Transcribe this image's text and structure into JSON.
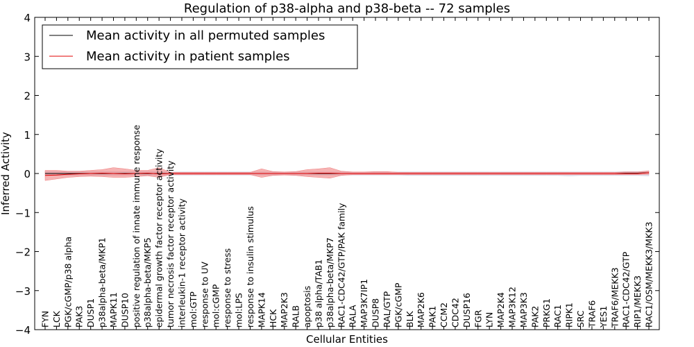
{
  "chart_data": {
    "type": "line",
    "title": "Regulation of p38-alpha and p38-beta -- 72 samples",
    "xlabel": "Cellular Entities",
    "ylabel": "Inferred Activity",
    "ylim": [
      -4,
      4
    ],
    "yticks": [
      4,
      3,
      2,
      1,
      0,
      -1,
      -2,
      -3,
      -4
    ],
    "ytick_labels": [
      "4",
      "3",
      "2",
      "1",
      "0",
      "−1",
      "−2",
      "−3",
      "−4"
    ],
    "legend_location": "top-left",
    "categories": [
      "FYN",
      "LCK",
      "PGK/cGMP/p38 alpha",
      "PAK3",
      "DUSP1",
      "p38alpha-beta/MKP1",
      "MAPK11",
      "DUSP10",
      "positive regulation of innate immune response",
      "p38alpha-beta/MKP5",
      "epidermal growth factor receptor activity",
      "tumor necrosis factor receptor activity",
      "interleukin-1 receptor activity",
      "mol:GTP",
      "response to UV",
      "mol:cGMP",
      "response to stress",
      "mol:LPS",
      "response to insulin stimulus",
      "MAPK14",
      "HCK",
      "MAP2K3",
      "RALB",
      "apoptosis",
      "p38 alpha/TAB1",
      "p38alpha-beta/MKP7",
      "RAC1-CDC42/GTP/PAK family",
      "RALA",
      "MAP3K7IP1",
      "DUSP8",
      "RAL/GTP",
      "PGK/cGMP",
      "BLK",
      "MAP2K6",
      "PAK1",
      "CCM2",
      "CDC42",
      "DUSP16",
      "FGR",
      "LYN",
      "MAP2K4",
      "MAP3K12",
      "MAP3K3",
      "PAK2",
      "PRKG1",
      "RAC1",
      "RIPK1",
      "SRC",
      "TRAF6",
      "YES1",
      "TRAF6/MEKK3",
      "RAC1-CDC42/GTP",
      "RIP1/MEKK3",
      "RAC1/OSM/MEKK3/MKK3"
    ],
    "series": [
      {
        "name": "Mean activity in all permuted samples",
        "color": "#000000",
        "values": [
          0,
          0,
          0,
          0,
          0,
          0,
          0,
          0,
          0,
          0,
          0,
          0,
          0,
          0,
          0,
          0,
          0,
          0,
          0,
          0,
          0,
          0,
          0,
          0,
          0,
          0,
          0,
          0,
          0,
          0,
          0,
          0,
          0,
          0,
          0,
          0,
          0,
          0,
          0,
          0,
          0,
          0,
          0,
          0,
          0,
          0,
          0,
          0,
          0,
          0,
          0,
          0.01,
          0.01,
          0.02
        ],
        "band_upper": [
          0.05,
          0.05,
          0.05,
          0.05,
          0.05,
          0.05,
          0.05,
          0.05,
          0.05,
          0.05,
          0.05,
          0.04,
          0.04,
          0.04,
          0.04,
          0.04,
          0.04,
          0.04,
          0.04,
          0.04,
          0.04,
          0.04,
          0.04,
          0.04,
          0.04,
          0.04,
          0.04,
          0.04,
          0.04,
          0.04,
          0.04,
          0.04,
          0.04,
          0.04,
          0.04,
          0.04,
          0.04,
          0.04,
          0.04,
          0.04,
          0.04,
          0.04,
          0.04,
          0.04,
          0.04,
          0.04,
          0.04,
          0.04,
          0.04,
          0.04,
          0.04,
          0.05,
          0.05,
          0.06
        ],
        "band_lower": [
          -0.05,
          -0.05,
          -0.05,
          -0.05,
          -0.05,
          -0.05,
          -0.05,
          -0.05,
          -0.05,
          -0.05,
          -0.05,
          -0.04,
          -0.04,
          -0.04,
          -0.04,
          -0.04,
          -0.04,
          -0.04,
          -0.04,
          -0.04,
          -0.04,
          -0.04,
          -0.04,
          -0.04,
          -0.04,
          -0.04,
          -0.04,
          -0.04,
          -0.04,
          -0.04,
          -0.04,
          -0.04,
          -0.05,
          -0.05,
          -0.05,
          -0.05,
          -0.05,
          -0.05,
          -0.05,
          -0.05,
          -0.05,
          -0.05,
          -0.05,
          -0.05,
          -0.05,
          -0.05,
          -0.06,
          -0.05,
          -0.05,
          -0.05,
          -0.05,
          -0.05,
          -0.05,
          -0.06
        ],
        "band_color": "#c8c8dc"
      },
      {
        "name": "Mean activity in patient samples",
        "color": "#e00000",
        "values": [
          -0.05,
          -0.04,
          -0.02,
          -0.01,
          0.0,
          0.01,
          0.0,
          -0.01,
          0.0,
          0.01,
          -0.01,
          0.0,
          0.0,
          0.0,
          0.0,
          0.0,
          0.0,
          0.0,
          0.0,
          0.0,
          0.0,
          0.0,
          0.0,
          0.0,
          0.01,
          0.01,
          0.0,
          0.0,
          0.0,
          0.0,
          0.0,
          0.0,
          0.0,
          0.0,
          0.0,
          0.0,
          0.0,
          0.0,
          0.0,
          0.0,
          0.0,
          0.0,
          0.0,
          0.0,
          0.0,
          0.0,
          0.0,
          0.0,
          0.0,
          0.0,
          0.0,
          0.0,
          0.0,
          0.02
        ],
        "band_upper": [
          0.08,
          0.08,
          0.06,
          0.06,
          0.08,
          0.1,
          0.15,
          0.12,
          0.08,
          0.08,
          0.15,
          0.03,
          0.03,
          0.03,
          0.03,
          0.03,
          0.03,
          0.03,
          0.03,
          0.12,
          0.05,
          0.04,
          0.05,
          0.1,
          0.12,
          0.15,
          0.06,
          0.04,
          0.04,
          0.05,
          0.05,
          0.03,
          0.03,
          0.03,
          0.03,
          0.03,
          0.03,
          0.03,
          0.03,
          0.03,
          0.03,
          0.03,
          0.03,
          0.03,
          0.03,
          0.03,
          0.03,
          0.03,
          0.03,
          0.03,
          0.03,
          0.04,
          0.04,
          0.07
        ],
        "band_lower": [
          -0.18,
          -0.14,
          -0.1,
          -0.08,
          -0.07,
          -0.08,
          -0.1,
          -0.1,
          -0.08,
          -0.06,
          -0.1,
          -0.03,
          -0.03,
          -0.03,
          -0.03,
          -0.03,
          -0.03,
          -0.03,
          -0.03,
          -0.1,
          -0.05,
          -0.04,
          -0.05,
          -0.08,
          -0.1,
          -0.12,
          -0.05,
          -0.03,
          -0.03,
          -0.03,
          -0.03,
          -0.03,
          -0.03,
          -0.03,
          -0.03,
          -0.03,
          -0.03,
          -0.03,
          -0.03,
          -0.03,
          -0.03,
          -0.03,
          -0.03,
          -0.03,
          -0.03,
          -0.03,
          -0.03,
          -0.03,
          -0.03,
          -0.03,
          -0.03,
          -0.03,
          -0.03,
          -0.02
        ],
        "band_color": "#f08080"
      }
    ]
  }
}
